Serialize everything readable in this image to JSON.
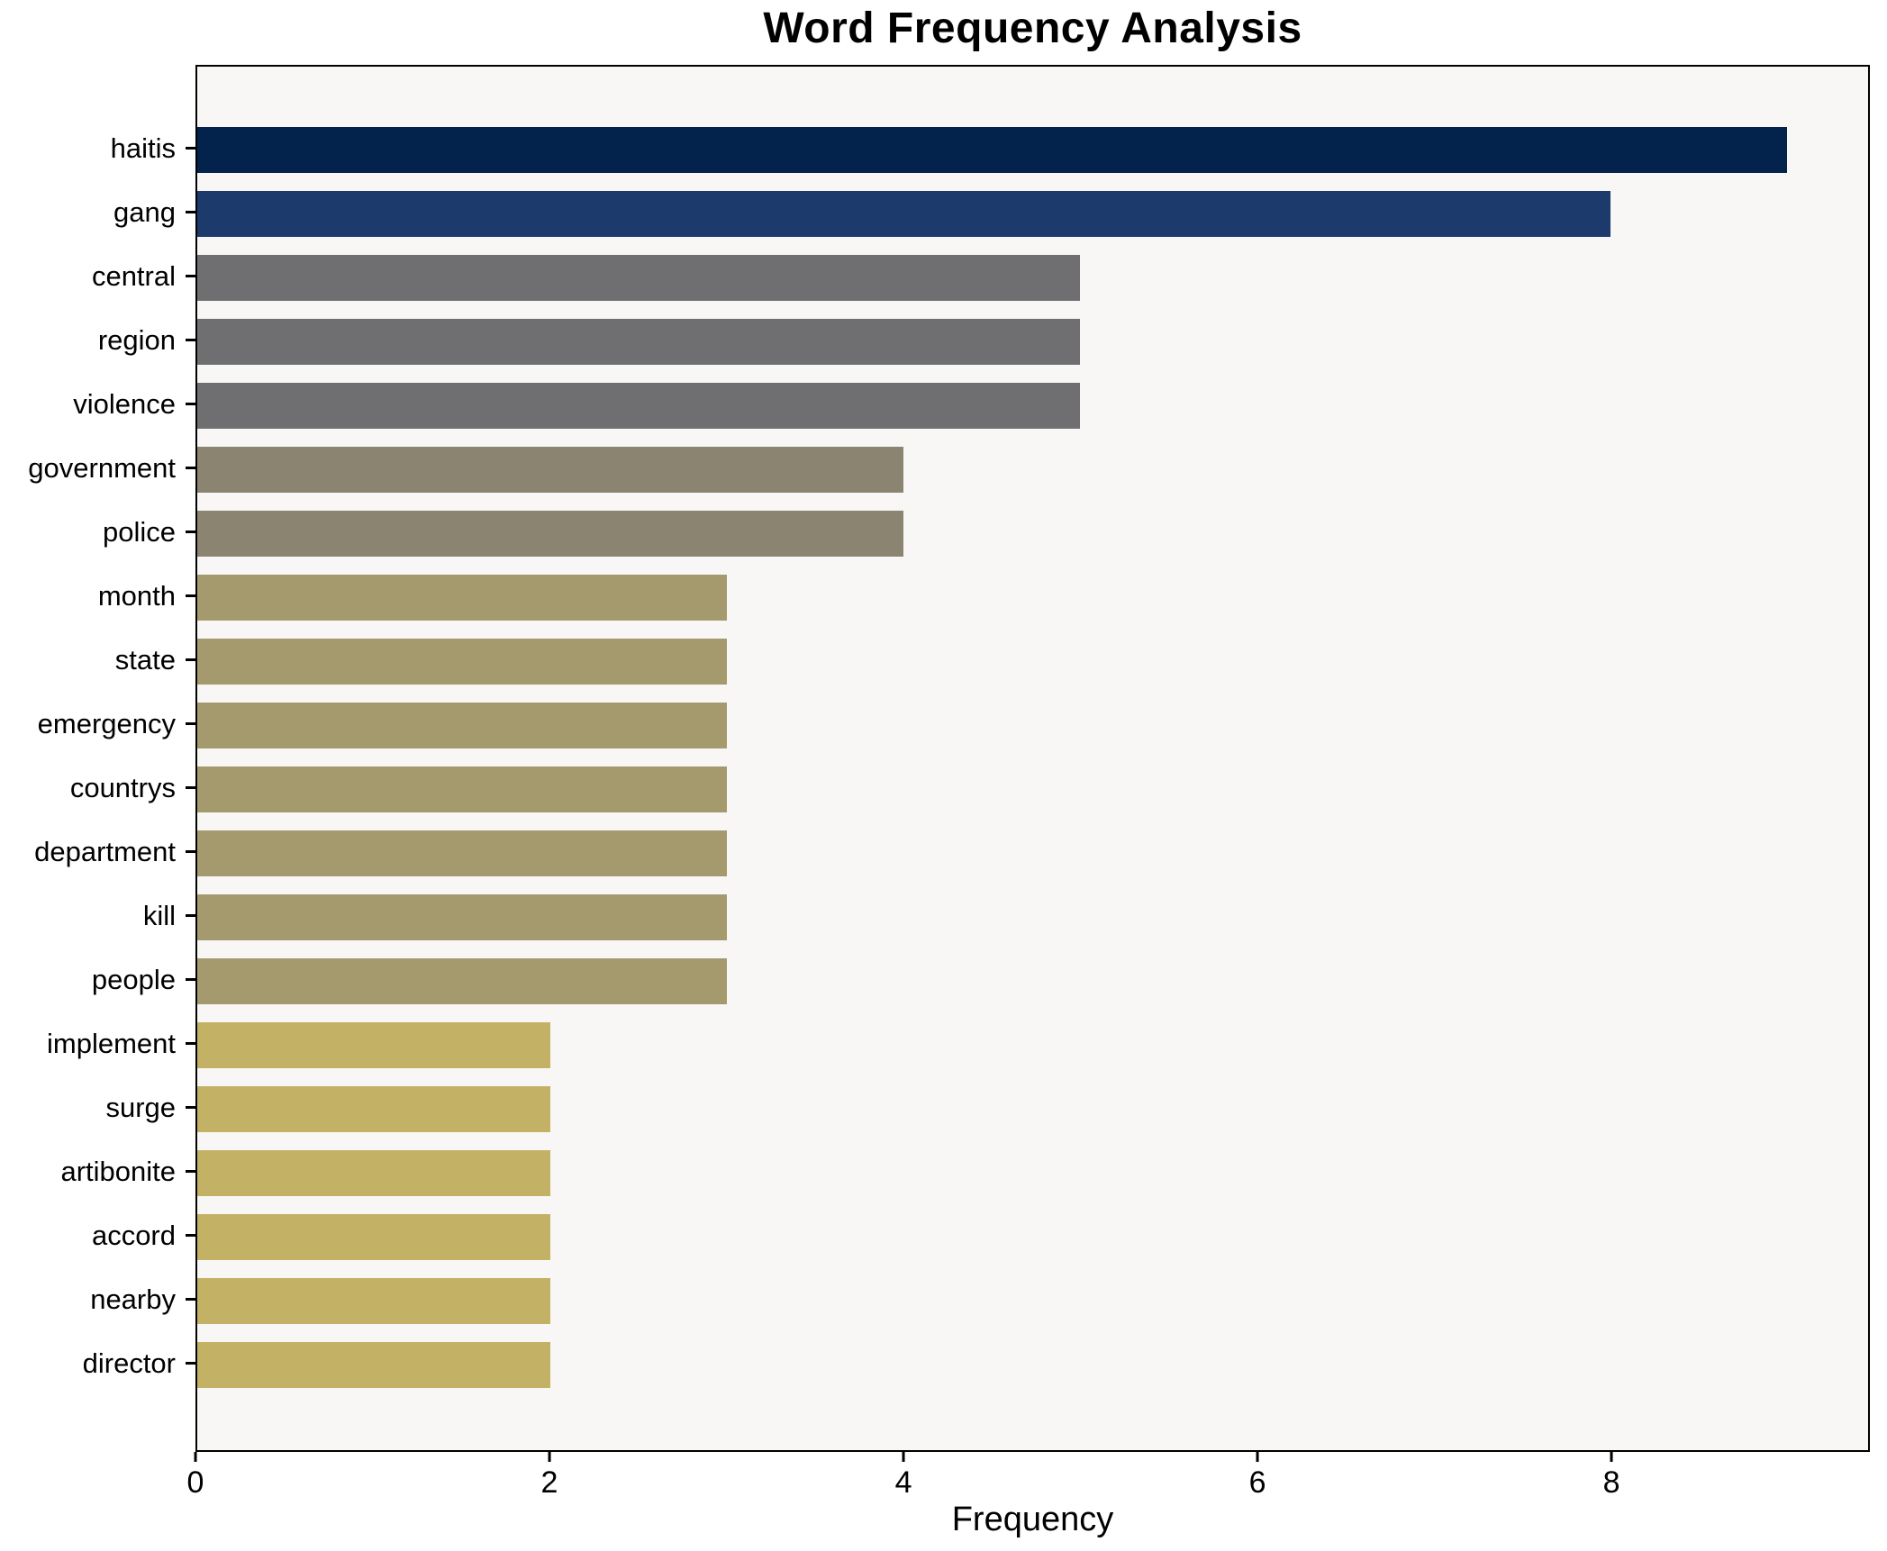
{
  "chart_data": {
    "type": "bar",
    "orientation": "horizontal",
    "title": "Word Frequency Analysis",
    "xlabel": "Frequency",
    "ylabel": "",
    "grid": false,
    "legend": null,
    "xlim": [
      0,
      9.46
    ],
    "xticks": [
      0,
      2,
      4,
      6,
      8
    ],
    "plot_background": "#f8f7f5",
    "figure_background": "#ffffff",
    "categories": [
      "haitis",
      "gang",
      "central",
      "region",
      "violence",
      "government",
      "police",
      "month",
      "state",
      "emergency",
      "countrys",
      "department",
      "kill",
      "people",
      "implement",
      "surge",
      "artibonite",
      "accord",
      "nearby",
      "director"
    ],
    "values": [
      9,
      8,
      5,
      5,
      5,
      4,
      4,
      3,
      3,
      3,
      3,
      3,
      3,
      3,
      2,
      2,
      2,
      2,
      2,
      2
    ],
    "bar_colors": [
      "#03224c",
      "#1d3a6d",
      "#6f6f71",
      "#6f6f71",
      "#6f6f71",
      "#8a8470",
      "#8a8470",
      "#a59a6e",
      "#a59a6e",
      "#a59a6e",
      "#a59a6e",
      "#a59a6e",
      "#a59a6e",
      "#a59a6e",
      "#c3b266",
      "#c3b266",
      "#c3b266",
      "#c3b266",
      "#c3b266",
      "#c3b266"
    ]
  }
}
